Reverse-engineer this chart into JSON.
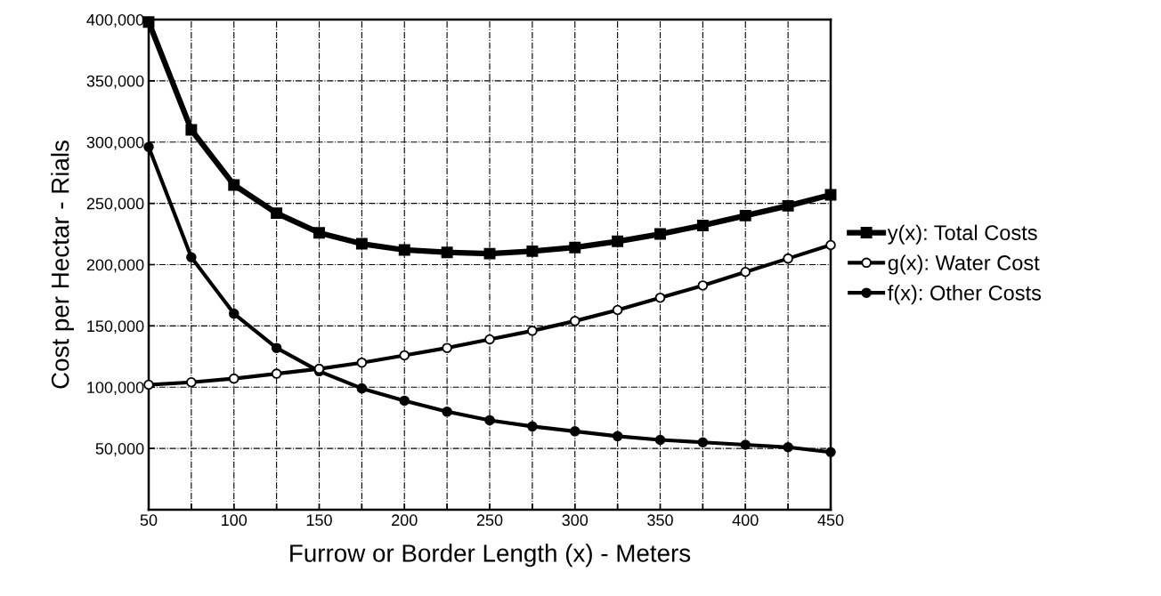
{
  "chart_data": {
    "type": "line",
    "xlabel": "Furrow or Border Length (x) - Meters",
    "ylabel": "Cost per Hectar - Rials",
    "x": [
      50,
      75,
      100,
      125,
      150,
      175,
      200,
      225,
      250,
      275,
      300,
      325,
      350,
      375,
      400,
      425,
      450
    ],
    "series": [
      {
        "name": "y(x): Total Costs",
        "color": "#000000",
        "marker": "square",
        "values": [
          398000,
          310000,
          265000,
          242000,
          226000,
          217000,
          212000,
          210000,
          209000,
          211000,
          214000,
          219000,
          225000,
          232000,
          240000,
          248000,
          257000
        ]
      },
      {
        "name": "g(x): Water Cost",
        "color": "#000000",
        "marker": "circle_open",
        "values": [
          102000,
          104000,
          107000,
          111000,
          115000,
          120000,
          126000,
          132000,
          139000,
          146000,
          154000,
          163000,
          173000,
          183000,
          194000,
          205000,
          216000
        ]
      },
      {
        "name": "f(x): Other Costs",
        "color": "#000000",
        "marker": "circle",
        "values": [
          296000,
          206000,
          160000,
          132000,
          113000,
          99000,
          89000,
          80000,
          73000,
          68000,
          64000,
          60000,
          57000,
          55000,
          53000,
          51000,
          47000
        ]
      }
    ],
    "xlim": [
      50,
      450
    ],
    "xticks": [
      50,
      {
        "value": 75,
        "label": null
      },
      100,
      {
        "value": 125,
        "label": null
      },
      150,
      {
        "value": 175,
        "label": null
      },
      200,
      {
        "value": 225,
        "label": null
      },
      250,
      {
        "value": 275,
        "label": null
      },
      300,
      {
        "value": 325,
        "label": null
      },
      350,
      {
        "value": 375,
        "label": null
      },
      400,
      {
        "value": 425,
        "label": null
      },
      450
    ],
    "ylim": [
      0,
      400000
    ],
    "yticks": [
      {
        "value": 50000,
        "label": "50,000"
      },
      {
        "value": 100000,
        "label": "100,000"
      },
      {
        "value": 150000,
        "label": "150,000"
      },
      {
        "value": 200000,
        "label": "200,000"
      },
      {
        "value": 250000,
        "label": "250,000"
      },
      {
        "value": 300000,
        "label": "300,000"
      },
      {
        "value": 350000,
        "label": "350,000"
      },
      {
        "value": 400000,
        "label": "400,000"
      }
    ],
    "grid": true,
    "legend": "right",
    "line_style": "solid"
  }
}
